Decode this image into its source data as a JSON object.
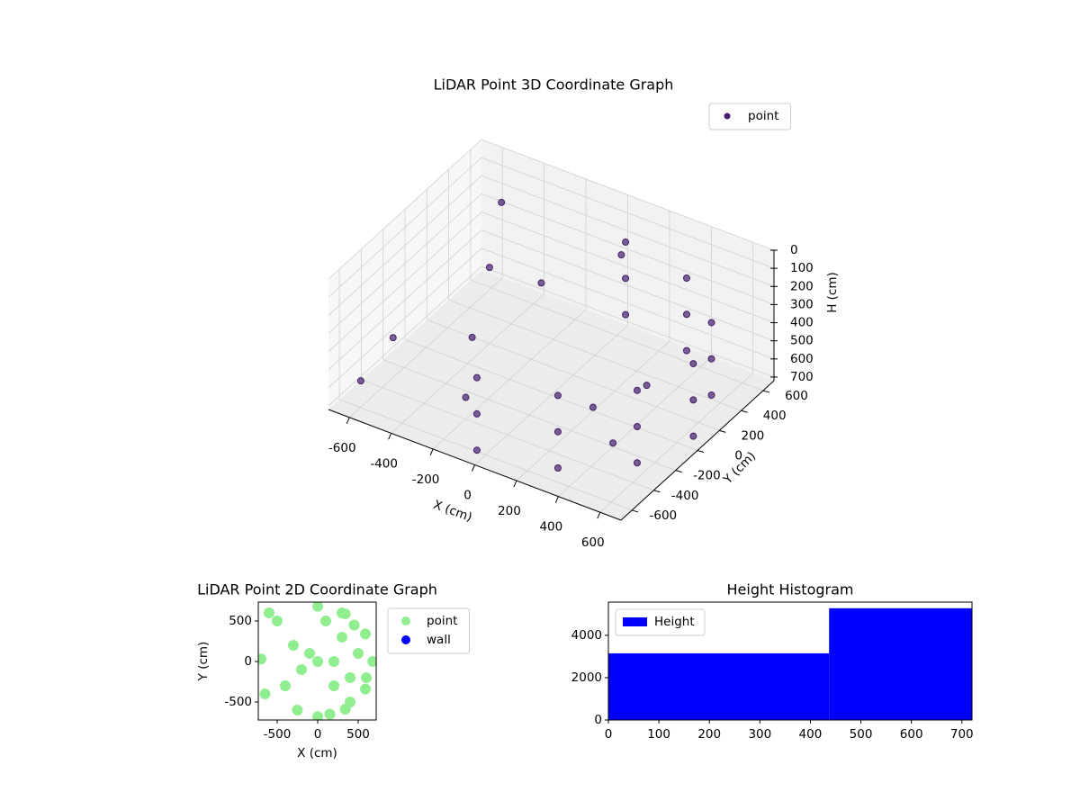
{
  "chart_data": [
    {
      "type": "scatter3d",
      "title": "LiDAR Point 3D Coordinate Graph",
      "xlabel": "X (cm)",
      "ylabel": "Y (cm)",
      "zlabel": "H (cm)",
      "xlim": [
        -700,
        700
      ],
      "ylim": [
        -700,
        700
      ],
      "zlim": [
        720,
        0
      ],
      "xticks": [
        -600,
        -400,
        -200,
        0,
        200,
        400,
        600
      ],
      "yticks": [
        -600,
        -400,
        -200,
        0,
        200,
        400,
        600
      ],
      "zticks": [
        0,
        100,
        200,
        300,
        400,
        500,
        600,
        700
      ],
      "legend": "upper right",
      "grid": true,
      "series": [
        {
          "name": "point",
          "color": "#46206e",
          "x": [
            0,
            340,
            589,
            680,
            589,
            340,
            0,
            0,
            340,
            589,
            680,
            589,
            340,
            0,
            0,
            340,
            589,
            680,
            589,
            340,
            0,
            200,
            400,
            300,
            -600,
            -400,
            -200,
            -100,
            -500,
            -650,
            100,
            -300
          ],
          "y": [
            -680,
            -589,
            -340,
            0,
            340,
            589,
            680,
            -680,
            -589,
            -340,
            0,
            340,
            589,
            680,
            -680,
            -589,
            -340,
            0,
            340,
            589,
            680,
            0,
            -200,
            300,
            -300,
            200,
            -400,
            100,
            500,
            -500,
            450,
            -150
          ],
          "z": [
            250,
            250,
            250,
            250,
            250,
            250,
            250,
            450,
            450,
            450,
            450,
            450,
            450,
            450,
            650,
            650,
            650,
            650,
            650,
            650,
            650,
            700,
            700,
            700,
            500,
            300,
            600,
            200,
            150,
            650,
            150,
            450
          ]
        }
      ]
    },
    {
      "type": "scatter",
      "title": "LiDAR Point 2D Coordinate Graph",
      "xlabel": "X (cm)",
      "ylabel": "Y (cm)",
      "xlim": [
        -733,
        722
      ],
      "ylim": [
        -722,
        733
      ],
      "xticks": [
        -500,
        0,
        500
      ],
      "yticks": [
        -500,
        0,
        500
      ],
      "legend": "outside right",
      "series": [
        {
          "name": "point",
          "color": "#90ee90",
          "x": [
            0,
            340,
            589,
            680,
            589,
            340,
            0,
            200,
            400,
            300,
            100,
            500,
            200,
            400,
            0,
            600,
            -300,
            -600,
            -650,
            -200,
            -500,
            -100,
            -700,
            300,
            450,
            -400,
            -250,
            150
          ],
          "y": [
            -680,
            -589,
            -340,
            0,
            340,
            589,
            680,
            0,
            -200,
            300,
            500,
            100,
            -300,
            -500,
            0,
            -200,
            200,
            600,
            -400,
            -100,
            500,
            100,
            30,
            600,
            450,
            -300,
            -600,
            -650
          ]
        },
        {
          "name": "wall",
          "color": "#0000ff",
          "x": [],
          "y": []
        }
      ]
    },
    {
      "type": "histogram",
      "title": "Height Histogram",
      "bins": [
        0,
        437,
        720
      ],
      "values": [
        3150,
        5280
      ],
      "xlim": [
        0,
        720
      ],
      "ylim": [
        0,
        5570
      ],
      "xticks": [
        0,
        100,
        200,
        300,
        400,
        500,
        600,
        700
      ],
      "yticks": [
        0,
        2000,
        4000
      ],
      "legend": "upper left",
      "series_name": "Height",
      "color": "#0000ff"
    }
  ]
}
